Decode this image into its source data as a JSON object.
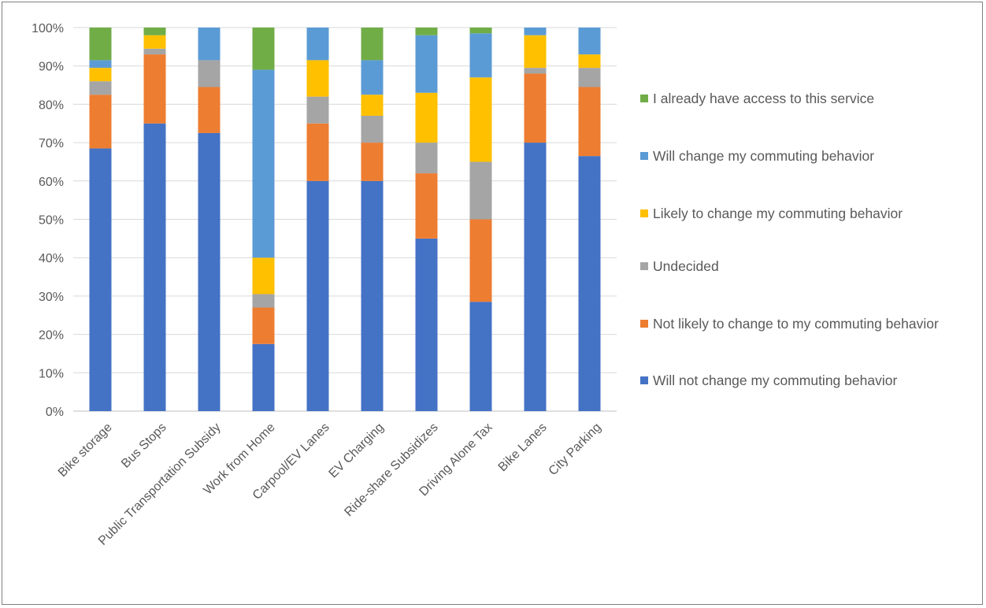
{
  "chart_data": {
    "type": "bar",
    "stacked": true,
    "percent": true,
    "categories": [
      "Bike storage",
      "Bus Stops",
      "Public Transportation Subsidy",
      "Work from Home",
      "Carpool/EV Lanes",
      "EV Charging",
      "Ride-share Subsidizes",
      "Driving Alone Tax",
      "Bike Lanes",
      "City Parking"
    ],
    "series": [
      {
        "name": "Will not change my commuting behavior",
        "color": "#4472C4",
        "values": [
          68.5,
          75,
          72.5,
          17.5,
          60,
          60,
          45,
          28.5,
          70,
          66.5
        ]
      },
      {
        "name": "Not likely to change to my commuting behavior",
        "color": "#ED7D31",
        "values": [
          14,
          18,
          12,
          9.5,
          15,
          10,
          17,
          21.5,
          18,
          18
        ]
      },
      {
        "name": "Undecided",
        "color": "#A5A5A5",
        "values": [
          3.5,
          1.5,
          7,
          3.5,
          7,
          7,
          8,
          15,
          1.5,
          5
        ]
      },
      {
        "name": "Likely to change my commuting behavior",
        "color": "#FFC000",
        "values": [
          3.5,
          3.5,
          0,
          9.5,
          9.5,
          5.5,
          13,
          22,
          8.5,
          3.5
        ]
      },
      {
        "name": "Will change my commuting behavior",
        "color": "#5B9BD5",
        "values": [
          2,
          0,
          8.5,
          49,
          8.5,
          9,
          15,
          11.5,
          2,
          7
        ]
      },
      {
        "name": "I already have access to this service",
        "color": "#70AD47",
        "values": [
          8.5,
          2,
          0,
          11,
          0,
          8.5,
          2,
          1.5,
          0,
          0
        ]
      }
    ],
    "yticks": [
      "0%",
      "10%",
      "20%",
      "30%",
      "40%",
      "50%",
      "60%",
      "70%",
      "80%",
      "90%",
      "100%"
    ],
    "ylim": [
      0,
      100
    ],
    "grid": true,
    "legend_position": "right",
    "title": "",
    "xlabel": "",
    "ylabel": ""
  }
}
